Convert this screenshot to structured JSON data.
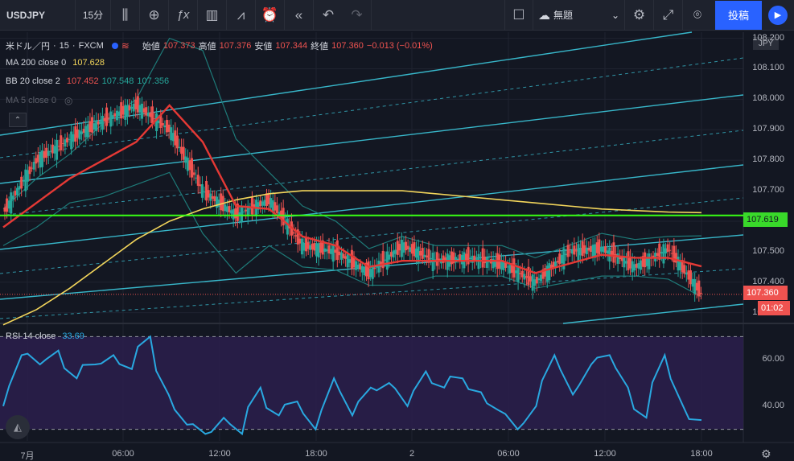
{
  "toolbar": {
    "symbol": "USDJPY",
    "interval": "15分",
    "layout_name": "無題",
    "publish_label": "投稿",
    "icons": [
      "candles-icon",
      "add-indicator-icon",
      "fx-icon",
      "chart-template-icon",
      "compare-icon",
      "alert-icon",
      "replay-icon",
      "undo-icon",
      "redo-icon",
      "fullscreen-icon",
      "settings-icon",
      "snapshot-icon",
      "play-icon"
    ]
  },
  "legend": {
    "symbol_desc": "米ドル／円",
    "interval": "15",
    "source": "FXCM",
    "open_label": "始値",
    "open": "107.373",
    "high_label": "高値",
    "high": "107.376",
    "low_label": "安値",
    "low": "107.344",
    "close_label": "終値",
    "close": "107.360",
    "change": "−0.013 (−0.01%)",
    "ma200_label": "MA 200 close 0",
    "ma200_value": "107.628",
    "bb_label": "BB 20 close 2",
    "bb_basis": "107.452",
    "bb_upper": "107.548",
    "bb_lower": "107.356",
    "ma5_label": "MA 5 close 0",
    "rsi_label": "RSI 14 close",
    "rsi_value": "33.69"
  },
  "price_axis": {
    "currency": "JPY",
    "ticks": [
      "108.200",
      "108.100",
      "108.000",
      "107.900",
      "107.800",
      "107.700",
      "107.600",
      "107.500",
      "107.400",
      "107.300"
    ],
    "hline_label": "107.619",
    "last_price_label": "107.360",
    "countdown_label": "01:02"
  },
  "rsi_axis": {
    "ticks": [
      "60.00",
      "40.00"
    ]
  },
  "time_axis": {
    "ticks": [
      "7月",
      "06:00",
      "12:00",
      "18:00",
      "2",
      "06:00",
      "12:00",
      "18:00"
    ]
  },
  "colors": {
    "background": "#131722",
    "up": "#26a69a",
    "down": "#ef5350",
    "ma200": "#f2d55b",
    "bb_basis": "#e53935",
    "bb_band": "#1e7a78",
    "channel": "#3cc8dc",
    "hline": "#39ff14",
    "rsi": "#29a8e0",
    "rsi_bg": "#2b1f4c"
  },
  "chart_data": {
    "type": "candlestick",
    "x": [
      "7月 00:00",
      "02:00",
      "04:00",
      "06:00",
      "08:00",
      "10:00",
      "12:00",
      "14:00",
      "16:00",
      "18:00",
      "20:00",
      "22:00",
      "2 00:00",
      "02:00",
      "04:00",
      "06:00",
      "08:00",
      "10:00",
      "12:00",
      "14:00",
      "16:00",
      "18:00"
    ],
    "close": [
      107.63,
      107.8,
      107.87,
      107.93,
      107.98,
      107.9,
      107.7,
      107.62,
      107.67,
      107.52,
      107.5,
      107.43,
      107.52,
      107.47,
      107.48,
      107.46,
      107.4,
      107.5,
      107.51,
      107.45,
      107.51,
      107.36
    ],
    "ma200": [
      107.26,
      107.31,
      107.38,
      107.46,
      107.54,
      107.6,
      107.64,
      107.67,
      107.69,
      107.7,
      107.7,
      107.7,
      107.7,
      107.69,
      107.68,
      107.67,
      107.66,
      107.65,
      107.64,
      107.635,
      107.63,
      107.628
    ],
    "bb_basis": [
      107.58,
      107.66,
      107.74,
      107.8,
      107.86,
      107.98,
      107.86,
      107.65,
      107.64,
      107.55,
      107.52,
      107.45,
      107.47,
      107.47,
      107.47,
      107.47,
      107.43,
      107.46,
      107.49,
      107.48,
      107.48,
      107.452
    ],
    "hline": 107.619,
    "ylim": [
      107.27,
      108.22
    ],
    "rsi": {
      "values": [
        40,
        62,
        58,
        64,
        52,
        58,
        62,
        56,
        70,
        45,
        32,
        28,
        35,
        28,
        48,
        36,
        42,
        30,
        52,
        36,
        48,
        50,
        40,
        55,
        48,
        52,
        46,
        38,
        30,
        40,
        62,
        45,
        58,
        62,
        48,
        35,
        62,
        40,
        34
      ],
      "ylim": [
        25,
        75
      ],
      "upper_band": 70,
      "lower_band": 30
    }
  }
}
